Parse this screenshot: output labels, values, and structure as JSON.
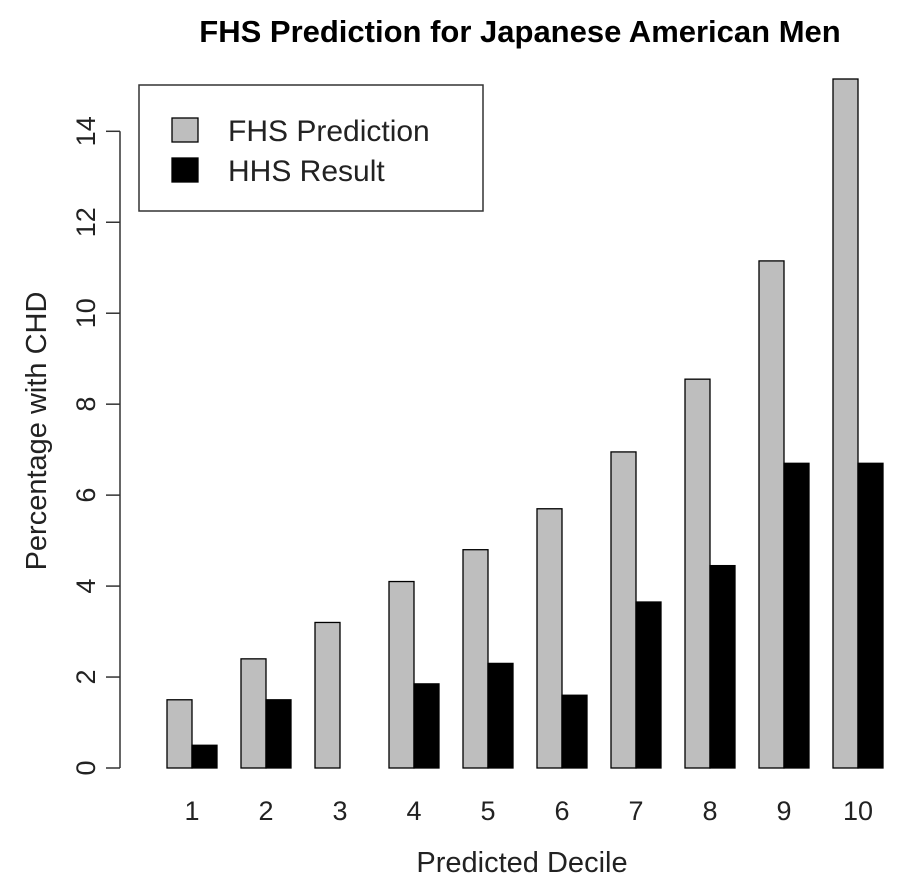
{
  "chart_data": {
    "type": "bar",
    "title": "FHS Prediction for Japanese American Men",
    "xlabel": "Predicted Decile",
    "ylabel": "Percentage with CHD",
    "categories": [
      "1",
      "2",
      "3",
      "4",
      "5",
      "6",
      "7",
      "8",
      "9",
      "10"
    ],
    "series": [
      {
        "name": "FHS Prediction",
        "color": "#bebebe",
        "values": [
          1.5,
          2.4,
          3.2,
          4.1,
          4.8,
          5.7,
          6.95,
          8.55,
          11.15,
          15.15
        ]
      },
      {
        "name": "HHS Result",
        "color": "#000000",
        "values": [
          0.5,
          1.5,
          0.0,
          1.85,
          2.3,
          1.6,
          3.65,
          4.45,
          6.7,
          6.7
        ]
      }
    ],
    "ylim": [
      0,
      15.15
    ],
    "yticks": [
      0,
      2,
      4,
      6,
      8,
      10,
      12,
      14
    ],
    "grid": false,
    "legend_position": "top-left",
    "legend_box": true
  }
}
